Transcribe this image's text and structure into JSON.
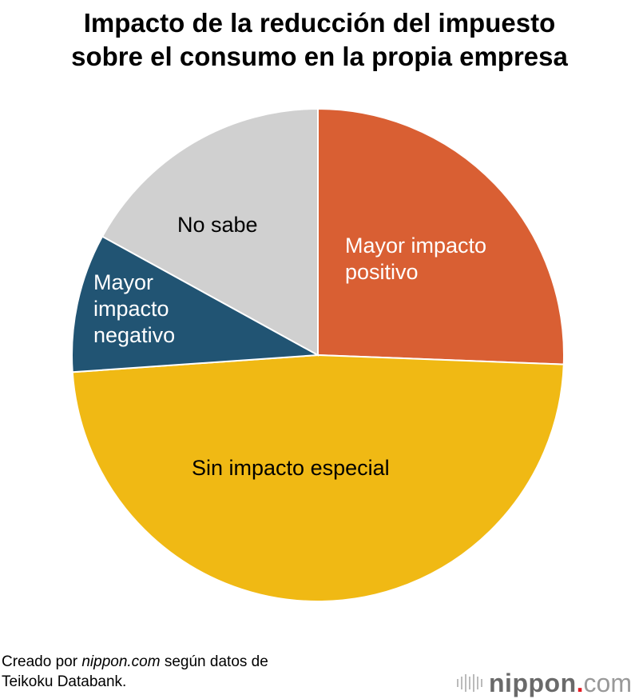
{
  "chart_data": {
    "type": "pie",
    "title_lines": [
      "Impacto de la reducción del impuesto",
      "sobre el consumo en la propia empresa"
    ],
    "start": "top",
    "direction": "clockwise",
    "slices": [
      {
        "label": "Mayor impacto positivo",
        "label_lines": [
          "Mayor impacto",
          "positivo"
        ],
        "value": 25.6,
        "color": "#d95f33",
        "text_color": "#ffffff"
      },
      {
        "label": "Sin impacto especial",
        "label_lines": [
          "Sin impacto especial"
        ],
        "value": 48.3,
        "color": "#f0b914",
        "text_color": "#000000"
      },
      {
        "label": "Mayor impacto negativo",
        "label_lines": [
          "Mayor",
          "impacto",
          "negativo"
        ],
        "value": 9.1,
        "color": "#215473",
        "text_color": "#ffffff"
      },
      {
        "label": "No sabe",
        "label_lines": [
          "No sabe"
        ],
        "value": 17.0,
        "color": "#d0d0d0",
        "text_color": "#000000"
      }
    ]
  },
  "source": {
    "prefix": "Creado por ",
    "site": "nippon.com",
    "suffix": " según datos de",
    "line2": "Teikoku Databank."
  },
  "logo": {
    "main": "nippon",
    "dot": ".",
    "tld": "com"
  }
}
